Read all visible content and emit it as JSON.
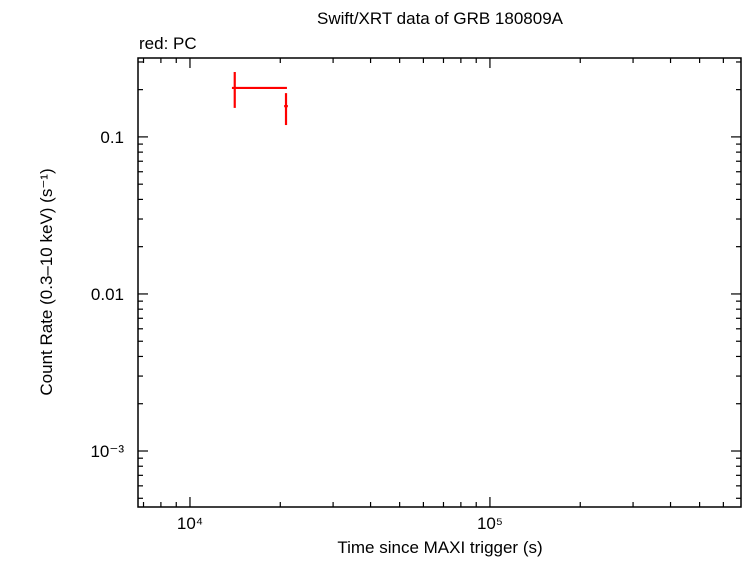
{
  "chart_data": {
    "type": "scatter",
    "title": "Swift/XRT data of GRB 180809A",
    "subtitle": "red: PC",
    "x_label": "Time since MAXI trigger (s)",
    "y_label": "Count Rate (0.3–10 keV) (s⁻¹)",
    "xscale": "log",
    "yscale": "log",
    "xlim": [
      6710,
      687000
    ],
    "ylim": [
      0.00044,
      0.318
    ],
    "xticks": [
      {
        "value": 10000,
        "label": "10⁴"
      },
      {
        "value": 100000,
        "label": "10⁵"
      }
    ],
    "xminorticks": [
      7000,
      8000,
      9000,
      20000,
      30000,
      40000,
      50000,
      60000,
      70000,
      80000,
      90000,
      200000,
      300000,
      400000,
      500000,
      600000
    ],
    "yticks": [
      {
        "value": 0.001,
        "label": "10⁻³"
      },
      0.01,
      0.1
    ],
    "yminorticks": [
      0.0005,
      0.0006,
      0.0007,
      0.0008,
      0.0009,
      0.002,
      0.003,
      0.004,
      0.005,
      0.006,
      0.007,
      0.008,
      0.009,
      0.02,
      0.03,
      0.04,
      0.05,
      0.06,
      0.07,
      0.08,
      0.09,
      0.2,
      0.3
    ],
    "series": [
      {
        "color": "#ff0000",
        "x": [
          14100,
          20900
        ],
        "values": [
          0.205,
          0.157
        ],
        "xerr_minus": [
          300,
          300
        ],
        "xerr_plus": [
          6950,
          300
        ],
        "yerr_minus": [
          0.052,
          0.038
        ],
        "yerr_plus": [
          0.054,
          0.033
        ]
      }
    ]
  }
}
